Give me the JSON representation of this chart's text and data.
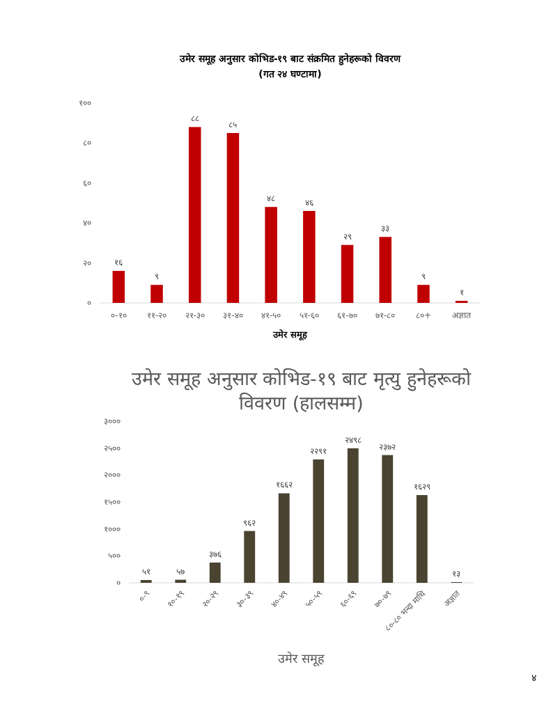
{
  "chart_data": [
    {
      "type": "bar",
      "title": "उमेर समूह अनुसार कोभिड-१९ बाट संक्रमित हुनेहरूको विवरण",
      "subtitle": "(गत २४ घण्टामा)",
      "xlabel": "उमेर समूह",
      "categories": [
        "०-१०",
        "११-२०",
        "२१-३०",
        "३१-४०",
        "४१-५०",
        "५१-६०",
        "६१-७०",
        "७१-८०",
        "८०+",
        "अज्ञात"
      ],
      "values": [
        16,
        9,
        88,
        85,
        48,
        46,
        29,
        33,
        9,
        1
      ],
      "value_labels": [
        "१६",
        "९",
        "८८",
        "८५",
        "४८",
        "४६",
        "२९",
        "३३",
        "९",
        "१"
      ],
      "color": "#c00000",
      "ylim": [
        0,
        100
      ],
      "yticks": [
        {
          "value": 0,
          "label": "०"
        },
        {
          "value": 20,
          "label": "२०"
        },
        {
          "value": 40,
          "label": "४०"
        },
        {
          "value": 60,
          "label": "६०"
        },
        {
          "value": 80,
          "label": "८०"
        },
        {
          "value": 100,
          "label": "१००"
        }
      ]
    },
    {
      "type": "bar",
      "title": "उमेर समूह अनुसार कोभिड-१९ बाट मृत्यु हुनेहरूको विवरण (हालसम्म)",
      "xlabel": "उमेर समूह",
      "categories": [
        "०-९",
        "१०-१९",
        "२०-२९",
        "३०-३९",
        "४०-४९",
        "५०-५९",
        "६०-६९",
        "७०-७९",
        "८०-८० भन्दा माथि",
        "अज्ञात"
      ],
      "values": [
        51,
        57,
        376,
        962,
        1662,
        2291,
        2498,
        2372,
        1629,
        13
      ],
      "value_labels": [
        "५१",
        "५७",
        "३७६",
        "९६२",
        "१६६२",
        "२२९१",
        "२४९८",
        "२३७२",
        "१६२९",
        "१३"
      ],
      "color": "#4a4330",
      "ylim": [
        0,
        3000
      ],
      "yticks": [
        {
          "value": 0,
          "label": "०"
        },
        {
          "value": 500,
          "label": "५००"
        },
        {
          "value": 1000,
          "label": "१०००"
        },
        {
          "value": 1500,
          "label": "१५००"
        },
        {
          "value": 2000,
          "label": "२०००"
        },
        {
          "value": 2500,
          "label": "२५००"
        },
        {
          "value": 3000,
          "label": "३०००"
        }
      ],
      "annotations": [
        "४"
      ]
    }
  ]
}
